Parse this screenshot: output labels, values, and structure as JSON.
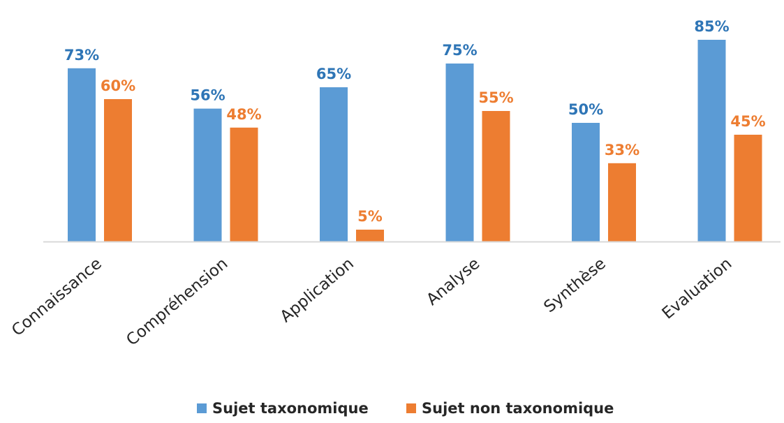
{
  "chart_data": {
    "type": "bar",
    "categories": [
      "Connaissance",
      "Compréhension",
      "Application",
      "Analyse",
      "Synthèse",
      "Evaluation"
    ],
    "series": [
      {
        "name": "Sujet taxonomique",
        "values": [
          73,
          56,
          65,
          75,
          50,
          85
        ],
        "labels": [
          "73%",
          "56%",
          "65%",
          "75%",
          "50%",
          "85%"
        ],
        "color": "#5B9BD5",
        "label_color": "#2E75B6"
      },
      {
        "name": "Sujet non taxonomique",
        "values": [
          60,
          48,
          5,
          55,
          33,
          45
        ],
        "labels": [
          "60%",
          "48%",
          "5%",
          "55%",
          "33%",
          "45%"
        ],
        "color": "#ED7D31",
        "label_color": "#ED7D31"
      }
    ],
    "ylim": [
      0,
      100
    ],
    "grid": false,
    "legend_position": "bottom",
    "axis_color": "#D9D9D9"
  }
}
